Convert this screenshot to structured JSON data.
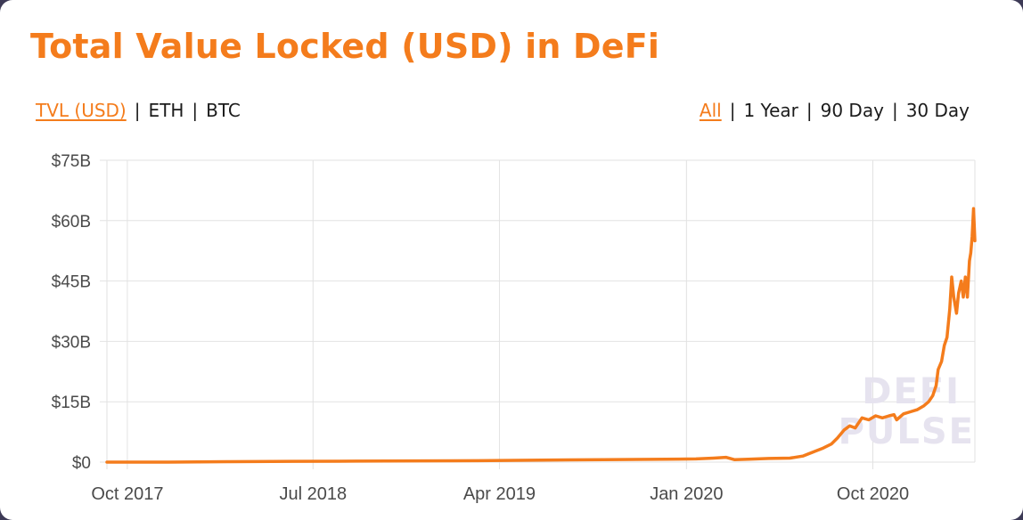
{
  "title": "Total Value Locked (USD) in DeFi",
  "metric_toggle": {
    "options": [
      "TVL (USD)",
      "ETH",
      "BTC"
    ],
    "selected": "TVL (USD)"
  },
  "range_toggle": {
    "options": [
      "All",
      "1 Year",
      "90 Day",
      "30 Day"
    ],
    "selected": "All"
  },
  "watermark": [
    "DEFI",
    "PULSE"
  ],
  "colors": {
    "accent": "#f47c1c",
    "grid": "#e2e2e2",
    "text": "#1b1b1b"
  },
  "chart_data": {
    "type": "line",
    "title": "Total Value Locked (USD) in DeFi",
    "xlabel": "",
    "ylabel": "",
    "ylim": [
      0,
      75
    ],
    "y_unit": "billion USD",
    "y_ticks": [
      0,
      15,
      30,
      45,
      60,
      75
    ],
    "y_tick_labels": [
      "$0",
      "$15B",
      "$30B",
      "$45B",
      "$60B",
      "$75B"
    ],
    "x_ticks": [
      "2017-10",
      "2018-07",
      "2019-04",
      "2020-01",
      "2020-10"
    ],
    "x_tick_labels": [
      "Oct 2017",
      "Jul 2018",
      "Apr 2019",
      "Jan 2020",
      "Oct 2020"
    ],
    "xlim": [
      "2017-09-01",
      "2021-02-28"
    ],
    "grid": true,
    "legend": "none",
    "series": [
      {
        "color": "#f47c1c",
        "points": [
          [
            "2017-09-01",
            0.0
          ],
          [
            "2017-12-01",
            0.01
          ],
          [
            "2018-03-01",
            0.1
          ],
          [
            "2018-06-01",
            0.2
          ],
          [
            "2018-09-01",
            0.25
          ],
          [
            "2018-12-01",
            0.3
          ],
          [
            "2019-03-01",
            0.35
          ],
          [
            "2019-06-01",
            0.5
          ],
          [
            "2019-09-01",
            0.6
          ],
          [
            "2019-12-01",
            0.7
          ],
          [
            "2020-01-15",
            0.8
          ],
          [
            "2020-02-10",
            1.0
          ],
          [
            "2020-02-28",
            1.2
          ],
          [
            "2020-03-12",
            0.6
          ],
          [
            "2020-04-01",
            0.7
          ],
          [
            "2020-05-01",
            0.9
          ],
          [
            "2020-06-01",
            1.0
          ],
          [
            "2020-06-20",
            1.5
          ],
          [
            "2020-07-05",
            2.5
          ],
          [
            "2020-07-20",
            3.5
          ],
          [
            "2020-08-01",
            4.5
          ],
          [
            "2020-08-10",
            6.0
          ],
          [
            "2020-08-20",
            8.0
          ],
          [
            "2020-08-28",
            9.0
          ],
          [
            "2020-09-05",
            8.5
          ],
          [
            "2020-09-15",
            11.0
          ],
          [
            "2020-09-25",
            10.5
          ],
          [
            "2020-10-05",
            11.5
          ],
          [
            "2020-10-15",
            11.0
          ],
          [
            "2020-10-25",
            11.5
          ],
          [
            "2020-11-01",
            11.8
          ],
          [
            "2020-11-05",
            10.5
          ],
          [
            "2020-11-15",
            12.0
          ],
          [
            "2020-11-25",
            12.5
          ],
          [
            "2020-12-05",
            13.0
          ],
          [
            "2020-12-15",
            14.0
          ],
          [
            "2020-12-22",
            15.0
          ],
          [
            "2020-12-28",
            16.5
          ],
          [
            "2021-01-02",
            19.0
          ],
          [
            "2021-01-05",
            23.0
          ],
          [
            "2021-01-10",
            25.0
          ],
          [
            "2021-01-14",
            29.0
          ],
          [
            "2021-01-18",
            31.0
          ],
          [
            "2021-01-22",
            38.0
          ],
          [
            "2021-01-25",
            46.0
          ],
          [
            "2021-01-28",
            41.0
          ],
          [
            "2021-02-01",
            37.0
          ],
          [
            "2021-02-04",
            42.0
          ],
          [
            "2021-02-08",
            45.0
          ],
          [
            "2021-02-11",
            41.0
          ],
          [
            "2021-02-14",
            46.0
          ],
          [
            "2021-02-17",
            41.0
          ],
          [
            "2021-02-20",
            50.0
          ],
          [
            "2021-02-22",
            52.0
          ],
          [
            "2021-02-24",
            56.0
          ],
          [
            "2021-02-26",
            63.0
          ],
          [
            "2021-02-28",
            55.0
          ]
        ]
      }
    ]
  }
}
